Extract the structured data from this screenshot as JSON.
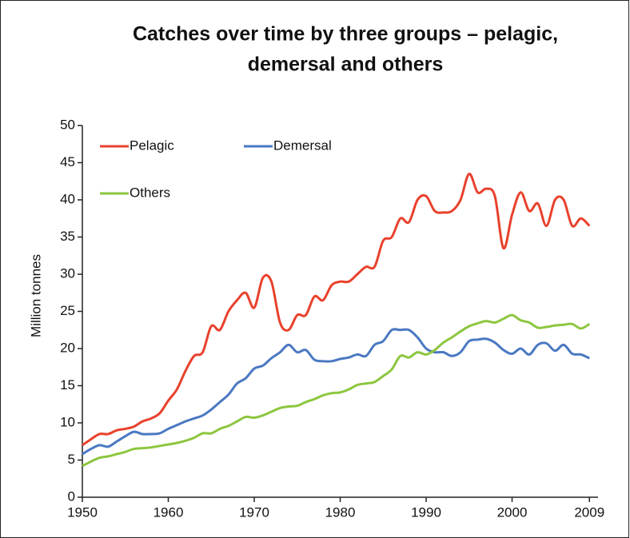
{
  "chart_data": {
    "type": "line",
    "title": [
      "Catches over time by three groups – pelagic,",
      "demersal and others"
    ],
    "y_label": "Million tonnes",
    "x": [
      1950,
      1951,
      1952,
      1953,
      1954,
      1955,
      1956,
      1957,
      1958,
      1959,
      1960,
      1961,
      1962,
      1963,
      1964,
      1965,
      1966,
      1967,
      1968,
      1969,
      1970,
      1971,
      1972,
      1973,
      1974,
      1975,
      1976,
      1977,
      1978,
      1979,
      1980,
      1981,
      1982,
      1983,
      1984,
      1985,
      1986,
      1987,
      1988,
      1989,
      1990,
      1991,
      1992,
      1993,
      1994,
      1995,
      1996,
      1997,
      1998,
      1999,
      2000,
      2001,
      2002,
      2003,
      2004,
      2005,
      2006,
      2007,
      2008,
      2009
    ],
    "series": [
      {
        "name": "Pelagic",
        "color": "#e8412c",
        "values": [
          7,
          7.8,
          8.5,
          8.5,
          9,
          9.2,
          9.5,
          10.2,
          10.6,
          11.3,
          13,
          14.5,
          17,
          19,
          19.5,
          23,
          22.5,
          25,
          26.5,
          27.5,
          25.5,
          29.5,
          29,
          23.5,
          22.5,
          24.5,
          24.5,
          27,
          26.5,
          28.5,
          29,
          29,
          30,
          31,
          31,
          34.5,
          35,
          37.5,
          37,
          40,
          40.5,
          38.5,
          38.3,
          38.5,
          40,
          43.5,
          41,
          41.5,
          40.5,
          33.5,
          38,
          41,
          38.5,
          39.5,
          36.5,
          40,
          40,
          36.5,
          37.5,
          36.5
        ]
      },
      {
        "name": "Demersal",
        "color": "#4a78c2",
        "values": [
          5.8,
          6.5,
          7,
          6.8,
          7.5,
          8.2,
          8.8,
          8.5,
          8.5,
          8.6,
          9.2,
          9.7,
          10.2,
          10.6,
          11,
          11.8,
          12.8,
          13.8,
          15.3,
          16,
          17.3,
          17.7,
          18.7,
          19.5,
          20.5,
          19.5,
          19.8,
          18.5,
          18.3,
          18.3,
          18.6,
          18.8,
          19.2,
          19,
          20.5,
          21,
          22.5,
          22.5,
          22.5,
          21.5,
          20,
          19.5,
          19.5,
          19,
          19.5,
          21,
          21.2,
          21.3,
          20.8,
          19.8,
          19.3,
          20,
          19.2,
          20.5,
          20.7,
          19.7,
          20.5,
          19.3,
          19.2,
          18.7
        ]
      },
      {
        "name": "Others",
        "color": "#8dc63f",
        "values": [
          4.2,
          4.8,
          5.3,
          5.5,
          5.8,
          6.1,
          6.5,
          6.6,
          6.7,
          6.9,
          7.1,
          7.3,
          7.6,
          8,
          8.6,
          8.6,
          9.2,
          9.6,
          10.2,
          10.8,
          10.7,
          11,
          11.5,
          12,
          12.2,
          12.3,
          12.8,
          13.2,
          13.7,
          14,
          14.1,
          14.5,
          15.1,
          15.3,
          15.5,
          16.3,
          17.2,
          19,
          18.8,
          19.5,
          19.2,
          19.8,
          20.8,
          21.5,
          22.3,
          23,
          23.4,
          23.7,
          23.5,
          24,
          24.5,
          23.8,
          23.5,
          22.8,
          22.9,
          23.1,
          23.2,
          23.3,
          22.7,
          23.3
        ]
      }
    ],
    "xlim": [
      1950,
      2010
    ],
    "xticks": [
      1950,
      1960,
      1970,
      1980,
      1990,
      2000,
      2009
    ],
    "ylim": [
      0,
      50
    ],
    "yticks": [
      0,
      5,
      10,
      15,
      20,
      25,
      30,
      35,
      40,
      45,
      50
    ],
    "legend": "upper left"
  }
}
